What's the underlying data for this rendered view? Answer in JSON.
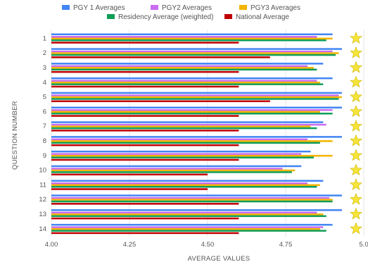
{
  "chart_data": {
    "type": "bar",
    "orientation": "horizontal",
    "xlabel": "AVERAGE VALUES",
    "ylabel": "QUESTION NUMBER",
    "xlim": [
      4.0,
      5.0
    ],
    "x_ticks": [
      "4.00",
      "4.25",
      "4.50",
      "4.75",
      "5.0"
    ],
    "categories": [
      "1",
      "2",
      "3",
      "4",
      "5",
      "6",
      "7",
      "8",
      "9",
      "10",
      "11",
      "12",
      "13",
      "14"
    ],
    "legend_position": "top",
    "grid": "vertical",
    "series": [
      {
        "name": "PGY 1 Averages",
        "color": "#4285f4",
        "values": [
          4.9,
          4.93,
          4.87,
          4.9,
          4.93,
          4.93,
          4.87,
          4.93,
          4.83,
          4.8,
          4.87,
          4.93,
          4.93,
          4.9
        ]
      },
      {
        "name": "PGY2 Averages",
        "color": "#c96cf0",
        "values": [
          4.85,
          4.9,
          4.82,
          4.85,
          4.92,
          4.9,
          4.88,
          4.82,
          4.8,
          4.74,
          4.82,
          4.89,
          4.85,
          4.87
        ]
      },
      {
        "name": "PGY3 Averages",
        "color": "#f4b400",
        "values": [
          4.9,
          4.92,
          4.84,
          4.86,
          4.93,
          4.86,
          4.83,
          4.9,
          4.9,
          4.78,
          4.86,
          4.9,
          4.87,
          4.86
        ]
      },
      {
        "name": "Residency Average (weighted)",
        "color": "#0f9d58",
        "values": [
          4.88,
          4.91,
          4.85,
          4.87,
          4.92,
          4.9,
          4.85,
          4.86,
          4.84,
          4.77,
          4.85,
          4.9,
          4.88,
          4.88
        ]
      },
      {
        "name": "National Average",
        "color": "#c00000",
        "values": [
          4.6,
          4.7,
          4.6,
          4.6,
          4.7,
          4.6,
          4.6,
          4.6,
          4.6,
          4.5,
          4.5,
          4.6,
          4.6,
          4.6
        ]
      }
    ],
    "star_marker_color": "#f7e43a"
  }
}
